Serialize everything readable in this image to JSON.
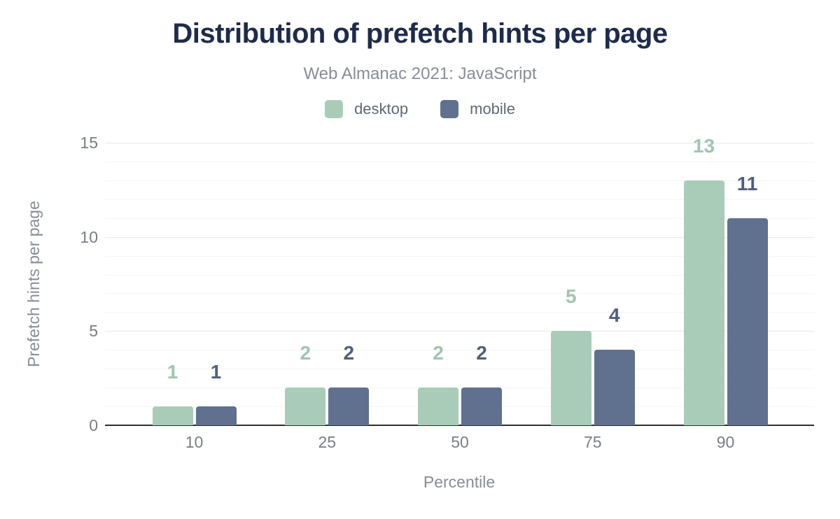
{
  "header": {
    "title": "Distribution of prefetch hints per page",
    "subtitle": "Web Almanac 2021: JavaScript"
  },
  "legend": [
    {
      "label": "desktop",
      "color": "#a8ccb8"
    },
    {
      "label": "mobile",
      "color": "#5f718e"
    }
  ],
  "colors": {
    "title": "#1e2b4b",
    "subtitle": "#878d96",
    "tick_text": "#797e86",
    "axis_line": "#2e2e2e",
    "major_grid": "#e9e9e9",
    "minor_grid": "#f5f5f5",
    "desktop_bar": "#a8ccb8",
    "desktop_label": "#9fc6b1",
    "mobile_bar": "#5f718e",
    "mobile_label": "#4e5f7f"
  },
  "chart_data": {
    "type": "bar",
    "title": "Distribution of prefetch hints per page",
    "subtitle": "Web Almanac 2021: JavaScript",
    "categories": [
      "10",
      "25",
      "50",
      "75",
      "90"
    ],
    "series": [
      {
        "name": "desktop",
        "color": "#a8ccb8",
        "label_color": "#9fc6b1",
        "values": [
          1,
          2,
          2,
          5,
          13
        ]
      },
      {
        "name": "mobile",
        "color": "#5f718e",
        "label_color": "#4e5f7f",
        "values": [
          1,
          2,
          2,
          4,
          11
        ]
      }
    ],
    "xlabel": "Percentile",
    "ylabel": "Prefetch hints per page",
    "ylim": [
      0,
      15
    ],
    "yticks": [
      0,
      5,
      10,
      15
    ],
    "minor_grid_every": 1,
    "grid": "horizontal",
    "legend_position": "top",
    "value_labels": "above bars, colored per series"
  }
}
